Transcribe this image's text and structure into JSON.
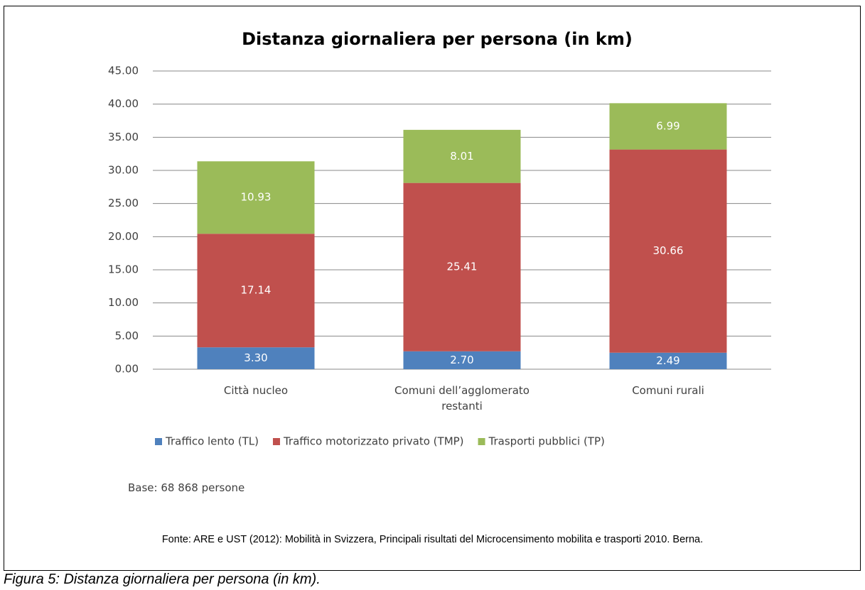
{
  "chart_data": {
    "type": "stacked_bar",
    "title": "Distanza giornaliera per persona (in km)",
    "categories": [
      "Città nucleo",
      "Comuni dell’agglomerato restanti",
      "Comuni rurali"
    ],
    "series": [
      {
        "name": "Traffico lento (TL)",
        "color": "#4f81bd",
        "values": [
          3.3,
          2.7,
          2.49
        ],
        "value_labels": [
          "3.30",
          "2.70",
          "2.49"
        ]
      },
      {
        "name": "Traffico motorizzato privato (TMP)",
        "color": "#c0504d",
        "values": [
          17.14,
          25.41,
          30.66
        ],
        "value_labels": [
          "17.14",
          "25.41",
          "30.66"
        ]
      },
      {
        "name": "Trasporti pubblici (TP)",
        "color": "#9bbb59",
        "values": [
          10.93,
          8.01,
          6.99
        ],
        "value_labels": [
          "10.93",
          "8.01",
          "6.99"
        ]
      }
    ],
    "ylim": [
      0,
      45
    ],
    "yticks": [
      {
        "value": 0,
        "label": "0.00"
      },
      {
        "value": 5,
        "label": "5.00"
      },
      {
        "value": 10,
        "label": "10.00"
      },
      {
        "value": 15,
        "label": "15.00"
      },
      {
        "value": 20,
        "label": "20.00"
      },
      {
        "value": 25,
        "label": "25.00"
      },
      {
        "value": 30,
        "label": "30.00"
      },
      {
        "value": 35,
        "label": "35.00"
      },
      {
        "value": 40,
        "label": "40.00"
      },
      {
        "value": 45,
        "label": "45.00"
      }
    ],
    "grid": true,
    "legend": "bottom",
    "note": "Base: 68 868 persone"
  },
  "source": "Fonte: ARE e UST (2012): Mobilità in Svizzera, Principali risultati del Microcensimento mobilita e trasporti 2010. Berna.",
  "caption": "Figura 5: Distanza giornaliera per persona (in km)."
}
